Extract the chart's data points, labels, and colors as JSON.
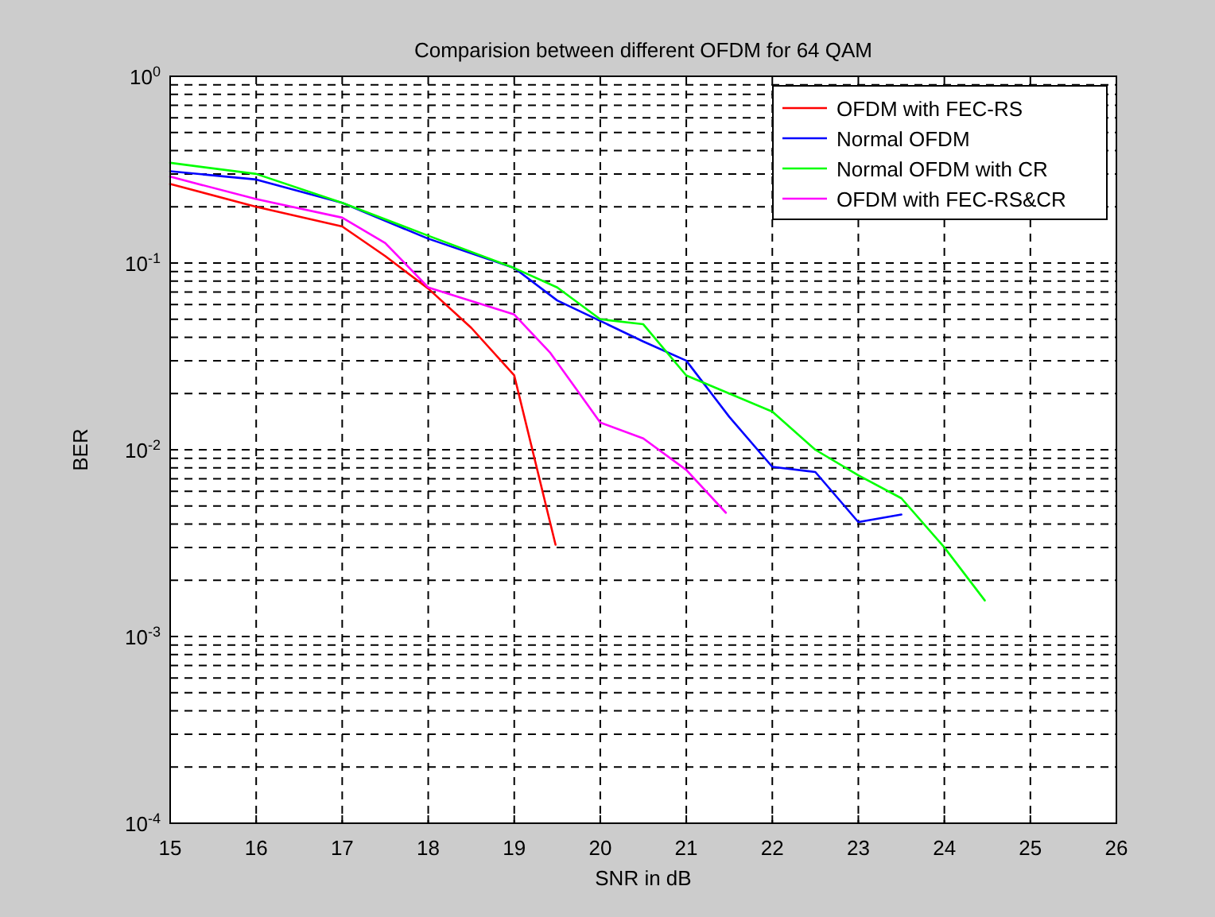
{
  "chart_data": {
    "type": "line",
    "title": "Comparision between different OFDM for 64 QAM",
    "xlabel": "SNR in dB",
    "ylabel": "BER",
    "log": "y",
    "grid": true,
    "legend": "top right",
    "xlim": [
      15,
      26
    ],
    "xticks": [
      15,
      16,
      17,
      18,
      19,
      20,
      21,
      22,
      23,
      24,
      25,
      26
    ],
    "ylim": [
      0.0001,
      1
    ],
    "yticks": [
      {
        "value": 0.0001,
        "label": "10$^{-4}$"
      },
      {
        "value": 0.001,
        "label": "10$^{-3}$"
      },
      {
        "value": 0.01,
        "label": "10$^{-2}$"
      },
      {
        "value": 0.1,
        "label": "10$^{-1}$"
      },
      {
        "value": 1,
        "label": "10$^{0}$"
      }
    ],
    "series": [
      {
        "name": "OFDM with FEC-RS",
        "color": "#ff0000",
        "x": [
          15,
          16,
          17,
          17.5,
          18,
          18.5,
          19,
          19.48
        ],
        "values": [
          0.265,
          0.2,
          0.157,
          0.109,
          0.073,
          0.045,
          0.025,
          0.0031
        ]
      },
      {
        "name": "Normal OFDM",
        "color": "#0000ff",
        "x": [
          15,
          16,
          17,
          18,
          19,
          19.5,
          20,
          20.5,
          21,
          21.5,
          22,
          22.5,
          23,
          23.5
        ],
        "values": [
          0.31,
          0.28,
          0.21,
          0.135,
          0.094,
          0.063,
          0.049,
          0.038,
          0.03,
          0.015,
          0.0081,
          0.0076,
          0.0041,
          0.0045
        ]
      },
      {
        "name": "Normal OFDM with CR",
        "color": "#00ff00",
        "x": [
          15,
          16,
          17,
          18,
          19,
          19.5,
          20,
          20.5,
          21,
          21.5,
          22,
          22.5,
          23,
          23.5,
          24,
          24.47
        ],
        "values": [
          0.344,
          0.3,
          0.21,
          0.14,
          0.094,
          0.074,
          0.05,
          0.047,
          0.025,
          0.02,
          0.016,
          0.01,
          0.0073,
          0.0055,
          0.003,
          0.00156
        ]
      },
      {
        "name": "OFDM with FEC-RS&CR",
        "color": "#ff00ff",
        "x": [
          15,
          16,
          17,
          17.5,
          18,
          19,
          19.42,
          20,
          20.5,
          21,
          21.46
        ],
        "values": [
          0.29,
          0.22,
          0.175,
          0.128,
          0.074,
          0.053,
          0.033,
          0.014,
          0.0115,
          0.0078,
          0.0046
        ]
      }
    ]
  }
}
